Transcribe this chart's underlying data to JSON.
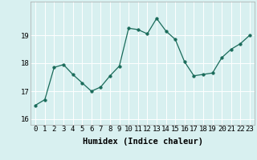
{
  "x": [
    0,
    1,
    2,
    3,
    4,
    5,
    6,
    7,
    8,
    9,
    10,
    11,
    12,
    13,
    14,
    15,
    16,
    17,
    18,
    19,
    20,
    21,
    22,
    23
  ],
  "y": [
    16.5,
    16.7,
    17.85,
    17.95,
    17.6,
    17.3,
    17.0,
    17.15,
    17.55,
    17.9,
    19.25,
    19.2,
    19.05,
    19.6,
    19.15,
    18.85,
    18.05,
    17.55,
    17.6,
    17.65,
    18.2,
    18.5,
    18.7,
    19.0
  ],
  "line_color": "#1a6b5a",
  "marker": "o",
  "marker_size": 2.5,
  "bg_color": "#d8f0f0",
  "grid_color": "#ffffff",
  "xlabel": "Humidex (Indice chaleur)",
  "ylabel": "",
  "ylim": [
    15.8,
    20.2
  ],
  "xlim": [
    -0.5,
    23.5
  ],
  "yticks": [
    16,
    17,
    18,
    19
  ],
  "xticks": [
    0,
    1,
    2,
    3,
    4,
    5,
    6,
    7,
    8,
    9,
    10,
    11,
    12,
    13,
    14,
    15,
    16,
    17,
    18,
    19,
    20,
    21,
    22,
    23
  ],
  "label_fontsize": 7.5,
  "tick_fontsize": 6.5
}
